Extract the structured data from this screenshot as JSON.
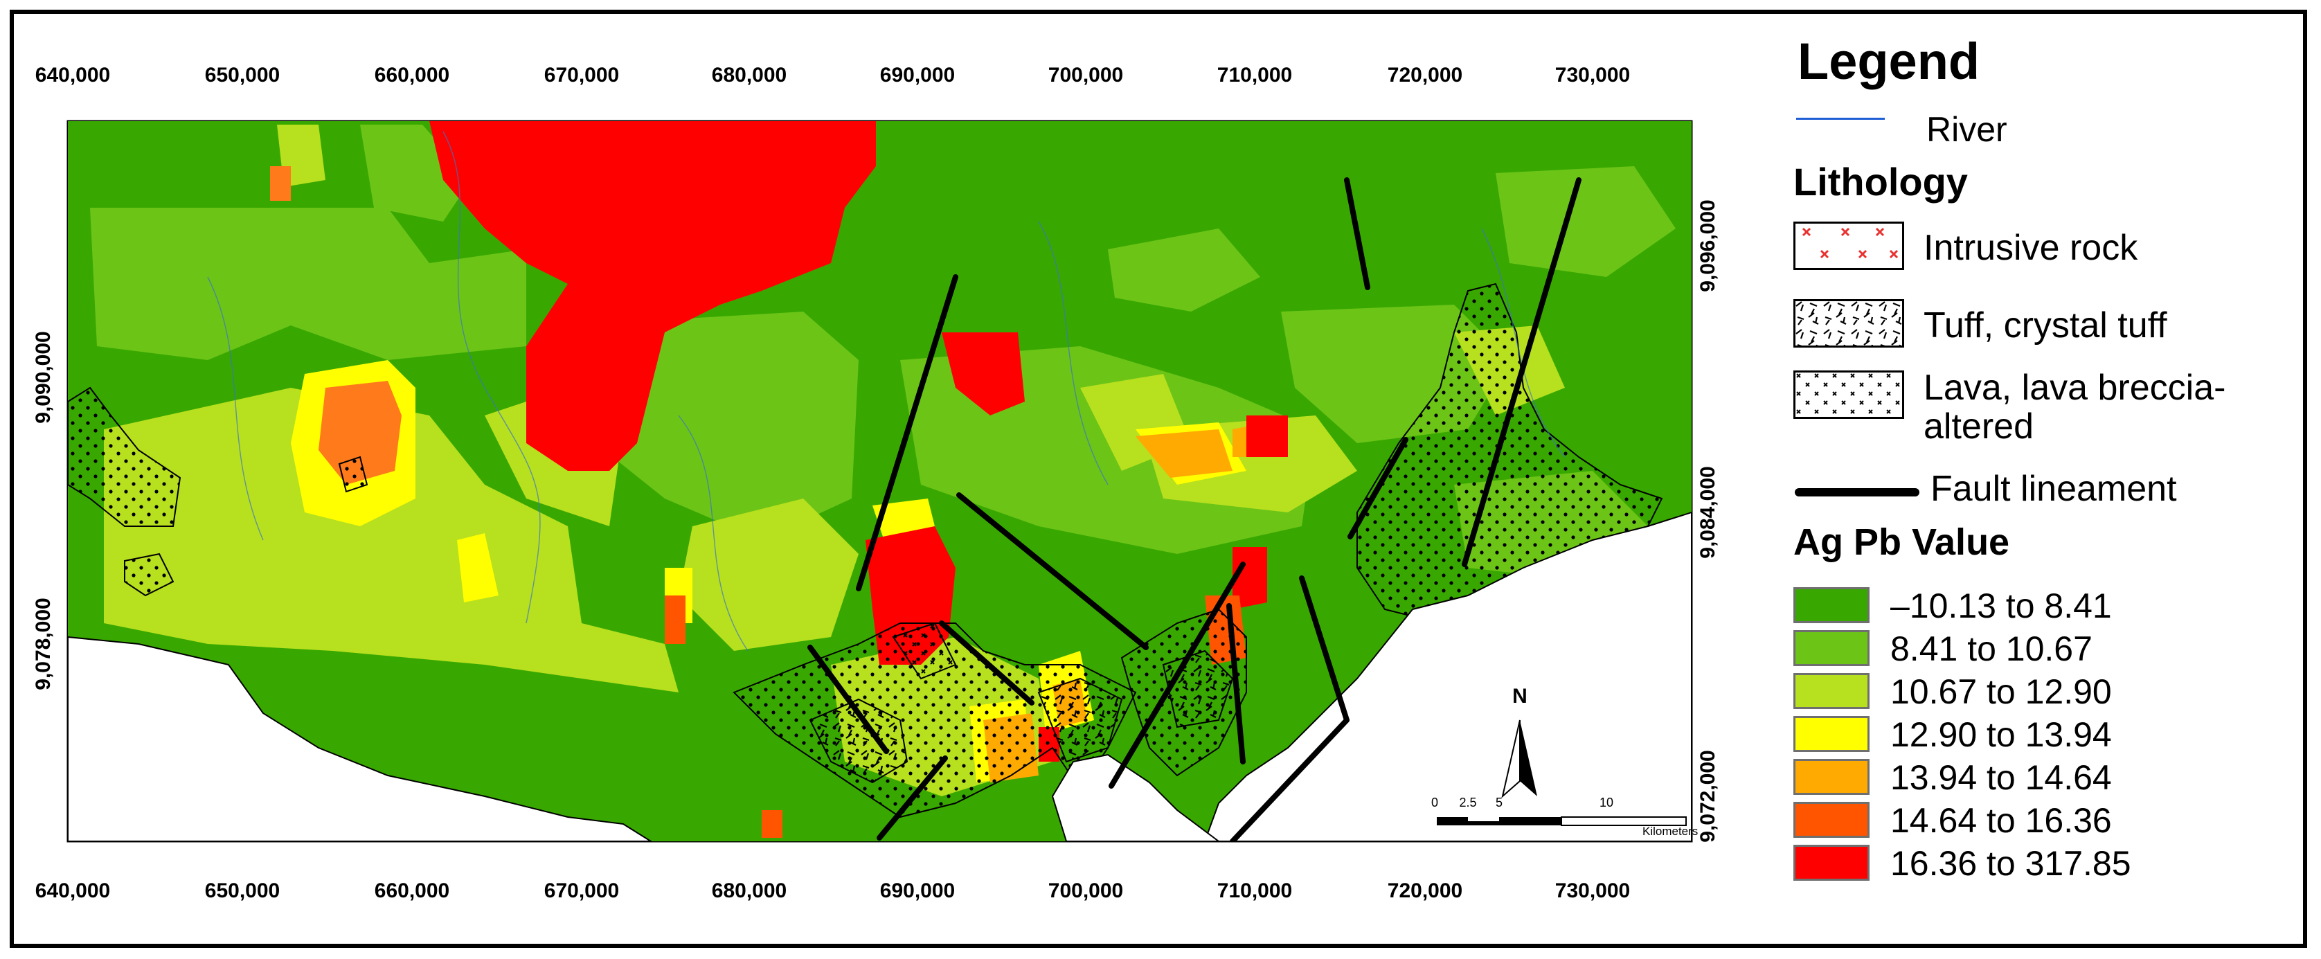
{
  "legend": {
    "title": "Legend",
    "river_label": "River",
    "lithology_title": "Lithology",
    "lithology": [
      {
        "label": "Intrusive rock",
        "icon": "red-x-pattern-icon"
      },
      {
        "label": "Tuff, crystal tuff",
        "icon": "tuff-pattern-icon"
      },
      {
        "label": "Lava, lava breccia-",
        "label2": "altered",
        "icon": "dotted-pattern-icon"
      }
    ],
    "fault_label": "Fault lineament",
    "value_title": "Ag Pb Value",
    "classes": [
      {
        "label": "–10.13 to 8.41",
        "color": "#38a800"
      },
      {
        "label": "8.41 to 10.67",
        "color": "#6cc417"
      },
      {
        "label": "10.67 to 12.90",
        "color": "#b7e01e"
      },
      {
        "label": "12.90 to 13.94",
        "color": "#ffff00"
      },
      {
        "label": "13.94 to 14.64",
        "color": "#ffaa00"
      },
      {
        "label": "14.64 to 16.36",
        "color": "#ff5500"
      },
      {
        "label": "16.36 to 317.85",
        "color": "#ff0000"
      }
    ]
  },
  "axes": {
    "x_ticks": [
      "640,000",
      "650,000",
      "660,000",
      "670,000",
      "680,000",
      "690,000",
      "700,000",
      "710,000",
      "720,000",
      "730,000"
    ],
    "y_ticks": [
      "9,096,000",
      "9,090,000",
      "9,084,000",
      "9,078,000",
      "9,072,000"
    ]
  },
  "scale_bar": {
    "labels": [
      "0",
      "2.5",
      "5",
      "10"
    ],
    "unit": "Kilometers",
    "north": "N"
  }
}
